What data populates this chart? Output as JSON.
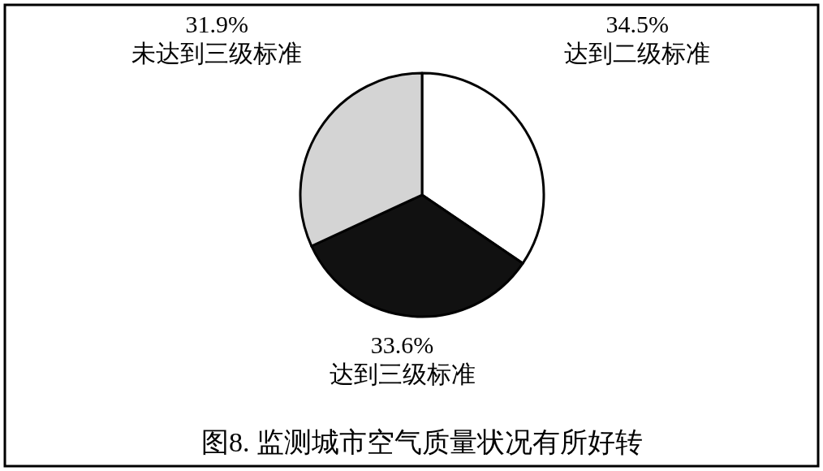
{
  "chart_data": {
    "type": "pie",
    "title": "图8. 监测城市空气质量状况有所好转",
    "categories": [
      "达到二级标准",
      "达到三级标准",
      "未达到三级标准"
    ],
    "values": [
      34.5,
      33.6,
      31.9
    ],
    "colors": [
      "#ffffff",
      "#111111",
      "#d4d4d4"
    ],
    "value_labels": [
      "34.5%",
      "33.6%",
      "31.9%"
    ]
  }
}
